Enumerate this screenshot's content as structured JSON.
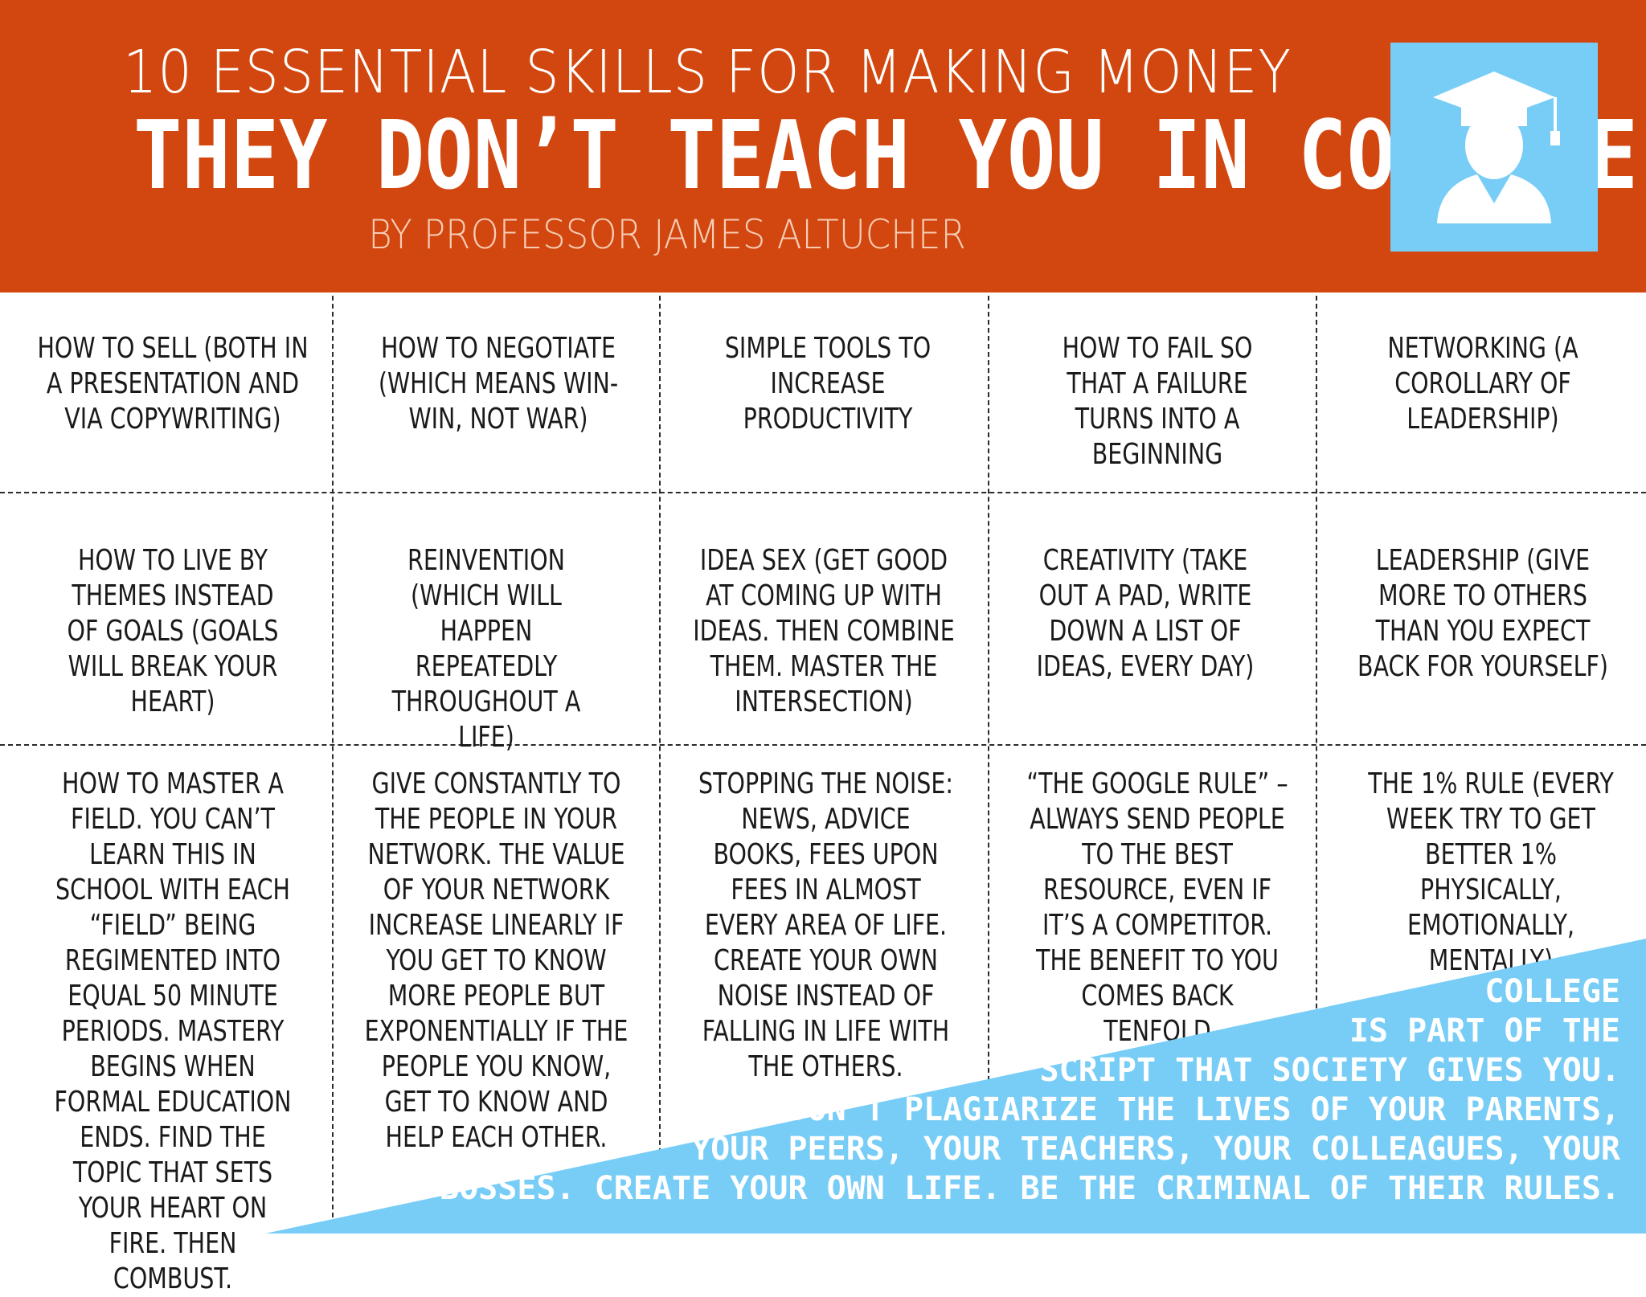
{
  "header": {
    "line1": "10 ESSENTIAL SKILLS FOR MAKING MONEY",
    "line2": "THEY DON’T TEACH YOU IN COLLEGE",
    "byline": "BY PROFESSOR JAMES ALTUCHER",
    "logo_icon": "graduate-icon"
  },
  "colors": {
    "header_bg": "#d2470f",
    "accent_blue": "#78cdf6",
    "text": "#1a1a1a"
  },
  "cells": [
    {
      "text": "HOW TO SELL (BOTH IN A PRESENTATION AND VIA COPYWRITING)"
    },
    {
      "text": "HOW TO NEGOTIATE (WHICH MEANS WIN-WIN, NOT WAR)"
    },
    {
      "text": "SIMPLE TOOLS TO INCREASE PRODUCTIVITY"
    },
    {
      "text": "HOW TO FAIL SO THAT A FAILURE TURNS INTO A BEGINNING"
    },
    {
      "text": "NETWORKING (A COROLLARY OF LEADERSHIP)"
    },
    {
      "text": "HOW TO LIVE BY THEMES INSTEAD OF GOALS (GOALS WILL BREAK YOUR HEART)"
    },
    {
      "text": "REINVENTION (WHICH WILL HAPPEN REPEATEDLY THROUGHOUT A LIFE)"
    },
    {
      "text": "IDEA SEX (GET GOOD AT COMING UP WITH IDEAS. THEN COMBINE THEM. MASTER THE INTERSECTION)"
    },
    {
      "text": "CREATIVITY (TAKE OUT A PAD, WRITE DOWN A LIST OF IDEAS, EVERY DAY)"
    },
    {
      "text": "LEADERSHIP (GIVE MORE TO OTHERS THAN YOU EXPECT BACK FOR YOURSELF)"
    },
    {
      "text": "HOW TO MASTER A FIELD. YOU CAN’T LEARN THIS IN SCHOOL WITH EACH “FIELD” BEING REGIMENTED INTO EQUAL 50 MINUTE PERIODS. MASTERY BEGINS WHEN FORMAL EDUCATION ENDS. FIND THE TOPIC THAT SETS YOUR HEART ON FIRE. THEN COMBUST."
    },
    {
      "text": "GIVE CONSTANTLY TO THE PEOPLE IN YOUR NETWORK. THE VALUE OF YOUR NETWORK INCREASE LINEARLY IF YOU GET TO KNOW MORE PEOPLE BUT EXPONENTIALLY IF THE PEOPLE YOU KNOW, GET TO KNOW AND HELP EACH OTHER."
    },
    {
      "text": "STOPPING THE NOISE: NEWS, ADVICE BOOKS, FEES UPON FEES IN ALMOST EVERY AREA OF LIFE. CREATE YOUR OWN NOISE INSTEAD OF FALLING IN LIFE WITH THE OTHERS."
    },
    {
      "text": "“THE GOOGLE RULE” – ALWAYS SEND PEOPLE TO THE BEST RESOURCE, EVEN IF IT’S A COMPETITOR. THE BENEFIT TO YOU COMES BACK TENFOLD"
    },
    {
      "text": "THE 1% RULE (EVERY WEEK TRY TO GET BETTER 1% PHYSICALLY, EMOTIONALLY, MENTALLY)"
    }
  ],
  "banner": {
    "lines": [
      "COLLEGE",
      "IS PART OF THE",
      "SCRIPT THAT SOCIETY GIVES YOU.",
      "DON’T PLAGIARIZE THE LIVES OF YOUR PARENTS,",
      "YOUR PEERS, YOUR TEACHERS, YOUR COLLEAGUES, YOUR",
      "BOSSES. CREATE YOUR OWN LIFE. BE THE CRIMINAL OF THEIR RULES."
    ]
  }
}
